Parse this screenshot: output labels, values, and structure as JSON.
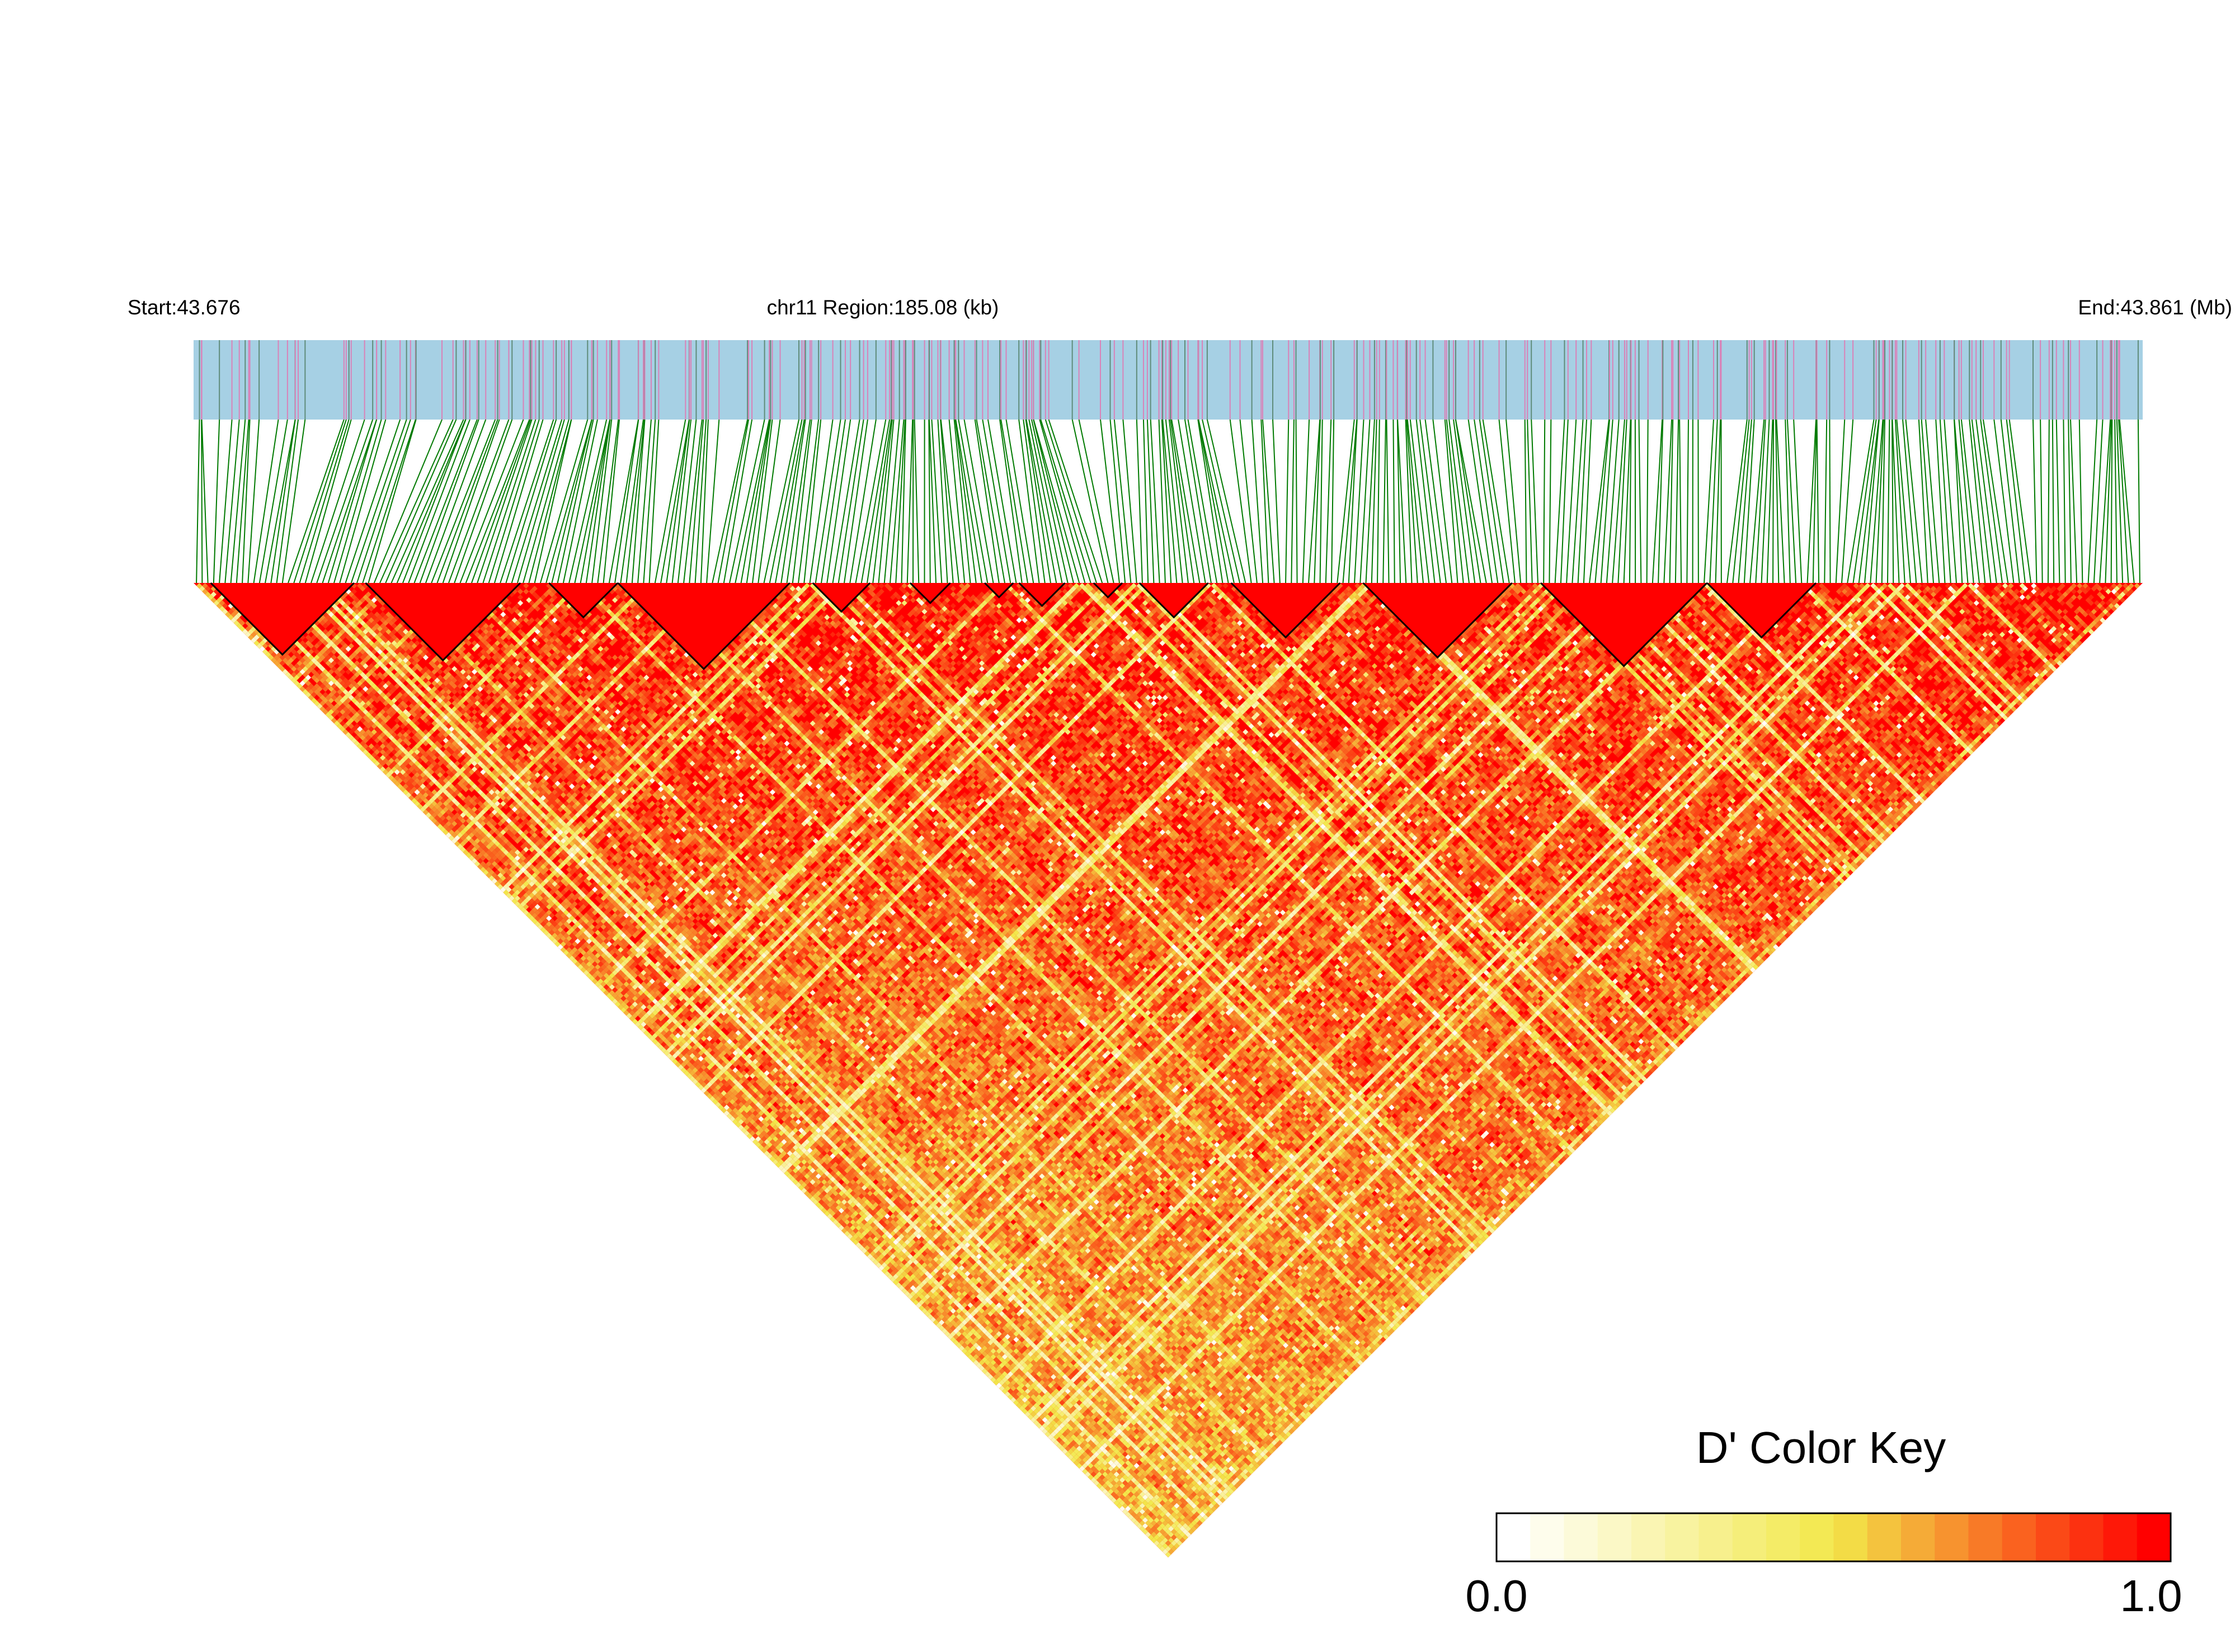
{
  "chart_data": {
    "type": "heatmap",
    "subtype": "linkage-disequilibrium triangle",
    "measure": "D'",
    "region_label": "chr11 Region:185.08 (kb)",
    "start_label": "Start:43.676",
    "end_label": "End:43.861 (Mb)",
    "chromosome": "chr11",
    "start_mb": 43.676,
    "end_mb": 43.861,
    "region_kb": 185.08,
    "snp_count_estimate": 340,
    "haplotype_blocks_estimate": 14,
    "value_range": [
      0.0,
      1.0
    ],
    "color_key": {
      "title": "D' Color Key",
      "min_label": "0.0",
      "max_label": "1.0",
      "colors": [
        "#ffffff",
        "#f2e84a",
        "#ff0000"
      ]
    },
    "track_colors": {
      "snp_track_background": "#a6d0e4",
      "snp_marks": [
        "#d982b8",
        "#5f8c7a"
      ],
      "connector_lines": "#007a00",
      "block_outline": "#000000"
    },
    "legend_position": "bottom-right"
  }
}
